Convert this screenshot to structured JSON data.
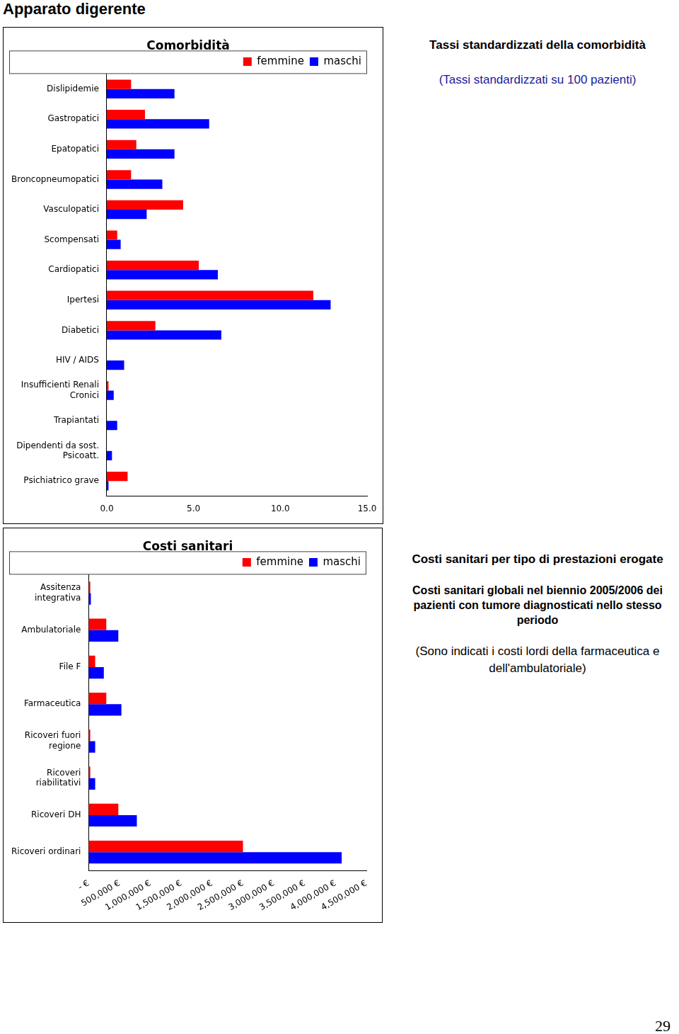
{
  "page": {
    "heading": "Apparato digerente",
    "notes": [
      {
        "title": "Tassi standardizzati della comorbidità",
        "subtitle": "(Tassi standardizzati su 100 pazienti)"
      },
      {
        "title": "Costi sanitari per tipo di prestazioni erogate",
        "subtitle": "Costi sanitari globali nel biennio 2005/2006 dei pazienti con tumore diagnosticati nello stesso periodo",
        "note": "(Sono indicati i costi lordi della farmaceutica e dell'ambulatoriale)"
      }
    ],
    "page_number": "29"
  },
  "chart_data": [
    {
      "type": "bar",
      "title": "Comorbidità",
      "orientation": "horizontal",
      "grid": false,
      "legend": "top right",
      "categories": [
        "Dislipidemie",
        "Gastropatici",
        "Epatopatici",
        "Broncopneumopatici",
        "Vasculopatici",
        "Scompensati",
        "Cardiopatici",
        "Ipertesi",
        "Diabetici",
        "HIV / AIDS",
        [
          "Insufficienti Renali",
          "Cronici"
        ],
        "Trapiantati",
        [
          "Dipendenti da sost.",
          "Psicoatt."
        ],
        "Psichiatrico grave"
      ],
      "series": [
        {
          "name": "femmine",
          "color": "#ff0000",
          "values": [
            1.4,
            2.2,
            1.7,
            1.4,
            4.4,
            0.6,
            5.3,
            11.9,
            2.8,
            0,
            0.1,
            0,
            0,
            1.2
          ]
        },
        {
          "name": "maschi",
          "color": "#0000ff",
          "values": [
            3.9,
            5.9,
            3.9,
            3.2,
            2.3,
            0.8,
            6.4,
            12.9,
            6.6,
            1.0,
            0.4,
            0.6,
            0.3,
            0.1
          ]
        }
      ],
      "xlim": [
        0,
        15
      ],
      "xticks": [
        {
          "value": 0,
          "label": "0.0"
        },
        {
          "value": 5,
          "label": "5.0"
        },
        {
          "value": 10,
          "label": "10.0"
        },
        {
          "value": 15,
          "label": "15.0"
        }
      ]
    },
    {
      "type": "bar",
      "title": "Costi sanitari",
      "orientation": "horizontal",
      "grid": false,
      "legend": "top right",
      "categories": [
        [
          "Assitenza",
          "integrativa"
        ],
        "Ambulatoriale",
        "File F",
        "Farmaceutica",
        [
          "Ricoveri fuori",
          "regione"
        ],
        [
          "Ricoveri",
          "riabilitativi"
        ],
        "Ricoveri DH",
        "Ricoveri ordinari"
      ],
      "series": [
        {
          "name": "femmine",
          "color": "#ff0000",
          "values": [
            25000,
            285000,
            105000,
            285000,
            25000,
            25000,
            480000,
            2500000
          ]
        },
        {
          "name": "maschi",
          "color": "#0000ff",
          "values": [
            35000,
            480000,
            245000,
            530000,
            105000,
            105000,
            780000,
            4100000
          ]
        }
      ],
      "xlim": [
        0,
        4500000
      ],
      "xticks": [
        {
          "value": 0,
          "label": "- €"
        },
        {
          "value": 500000,
          "label": "500,000 €"
        },
        {
          "value": 1000000,
          "label": "1,000,000 €"
        },
        {
          "value": 1500000,
          "label": "1,500,000 €"
        },
        {
          "value": 2000000,
          "label": "2,000,000 €"
        },
        {
          "value": 2500000,
          "label": "2,500,000 €"
        },
        {
          "value": 3000000,
          "label": "3,000,000 €"
        },
        {
          "value": 3500000,
          "label": "3,500,000 €"
        },
        {
          "value": 4000000,
          "label": "4,000,000 €"
        },
        {
          "value": 4500000,
          "label": "4,500,000 €"
        }
      ]
    }
  ]
}
